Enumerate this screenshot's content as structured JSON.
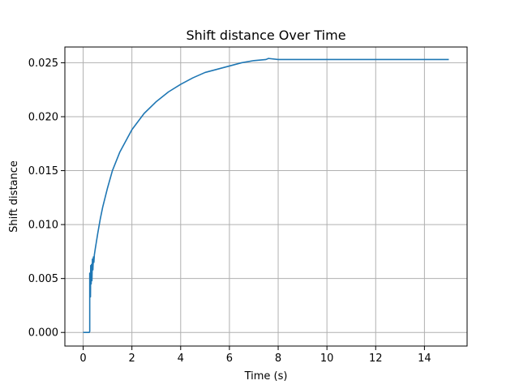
{
  "chart_data": {
    "type": "line",
    "title": "Shift distance Over Time",
    "xlabel": "Time (s)",
    "ylabel": "Shift distance",
    "xlim": [
      -0.75,
      15.75
    ],
    "ylim": [
      -0.00126,
      0.02646
    ],
    "xticks": [
      0,
      2,
      4,
      6,
      8,
      10,
      12,
      14
    ],
    "xtick_labels": [
      "0",
      "2",
      "4",
      "6",
      "8",
      "10",
      "12",
      "14"
    ],
    "yticks": [
      0.0,
      0.005,
      0.01,
      0.015,
      0.02,
      0.025
    ],
    "ytick_labels": [
      "0.000",
      "0.005",
      "0.010",
      "0.015",
      "0.020",
      "0.025"
    ],
    "grid": true,
    "legend": "none",
    "colors": {
      "series": "#1f77b4",
      "grid": "#b0b0b0"
    },
    "series": [
      {
        "x": [
          0,
          0.25,
          0.27,
          0.27,
          0.3,
          0.31,
          0.33,
          0.34,
          0.36,
          0.38,
          0.4,
          0.42,
          0.44,
          0.46,
          0.5,
          0.6,
          0.7,
          0.8,
          1.0,
          1.2,
          1.5,
          2.0,
          2.5,
          3.0,
          3.5,
          4.0,
          4.5,
          5.0,
          5.5,
          6.0,
          6.5,
          7.0,
          7.5,
          7.6,
          8.0,
          10.0,
          12.0,
          14.0,
          15.0
        ],
        "y": [
          0.0,
          0.0,
          0.0001,
          0.0055,
          0.0033,
          0.0062,
          0.0045,
          0.0063,
          0.0048,
          0.0068,
          0.0058,
          0.007,
          0.0065,
          0.0072,
          0.0078,
          0.0092,
          0.0105,
          0.0116,
          0.0134,
          0.015,
          0.0167,
          0.0188,
          0.0203,
          0.0214,
          0.0223,
          0.023,
          0.0236,
          0.0241,
          0.0244,
          0.0247,
          0.025,
          0.0252,
          0.0253,
          0.0254,
          0.0253,
          0.0253,
          0.0253,
          0.0253,
          0.0253
        ]
      }
    ]
  }
}
